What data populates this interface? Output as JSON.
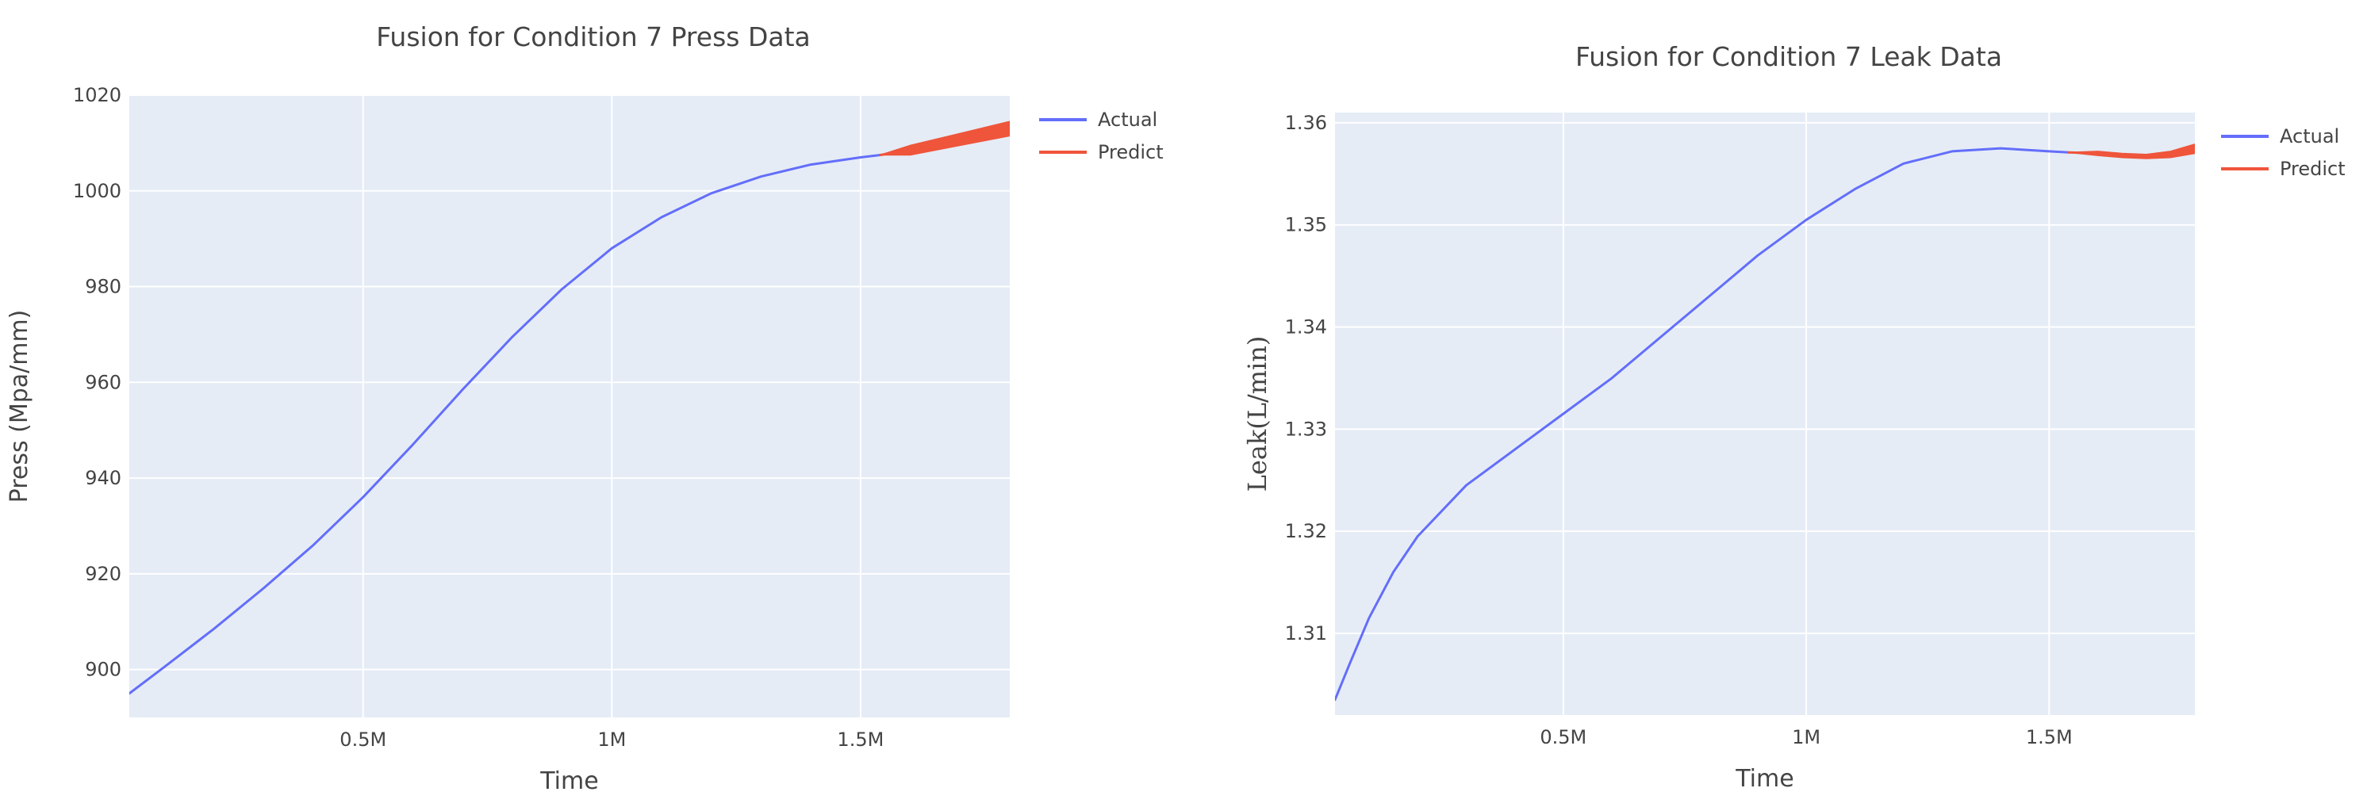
{
  "chart_data": [
    {
      "type": "line",
      "title": "Fusion for Condition 7 Press Data",
      "xlabel": "Time",
      "ylabel": "Press (Mpa/mm)",
      "xlim": [
        30000,
        1800000
      ],
      "ylim": [
        890,
        1020
      ],
      "x_ticks": [
        {
          "value": 500000,
          "label": "0.5M"
        },
        {
          "value": 1000000,
          "label": "1M"
        },
        {
          "value": 1500000,
          "label": "1.5M"
        }
      ],
      "y_ticks": [
        {
          "value": 900,
          "label": "900"
        },
        {
          "value": 920,
          "label": "920"
        },
        {
          "value": 940,
          "label": "940"
        },
        {
          "value": 960,
          "label": "960"
        },
        {
          "value": 980,
          "label": "980"
        },
        {
          "value": 1000,
          "label": "1000"
        },
        {
          "value": 1020,
          "label": "1020"
        }
      ],
      "grid": true,
      "legend": "top-right",
      "background": "#E5ECF6",
      "series": [
        {
          "name": "Actual",
          "color": "#636EFA",
          "x": [
            30000,
            100000,
            200000,
            300000,
            400000,
            500000,
            600000,
            700000,
            800000,
            900000,
            1000000,
            1100000,
            1200000,
            1300000,
            1400000,
            1500000,
            1540000
          ],
          "y": [
            895,
            900.5,
            908.5,
            917,
            926,
            936,
            947,
            958.5,
            969.5,
            979.5,
            988,
            994.5,
            999.5,
            1003,
            1005.5,
            1007,
            1007.5
          ]
        },
        {
          "name": "Predict",
          "color": "#EF553B",
          "x": [
            1540000,
            1600000,
            1700000,
            1800000
          ],
          "y": [
            1007.5,
            1008.5,
            1011,
            1013.5
          ],
          "y_lower": [
            1007.5,
            1007.5,
            1009.5,
            1011.5
          ],
          "y_upper": [
            1007.5,
            1009.5,
            1012,
            1014.5
          ]
        }
      ]
    },
    {
      "type": "line",
      "title": "Fusion for Condition 7 Leak Data",
      "xlabel": "Time",
      "ylabel": "Leak(L/min)",
      "xlim": [
        30000,
        1800000
      ],
      "ylim": [
        1.302,
        1.361
      ],
      "x_ticks": [
        {
          "value": 500000,
          "label": "0.5M"
        },
        {
          "value": 1000000,
          "label": "1M"
        },
        {
          "value": 1500000,
          "label": "1.5M"
        }
      ],
      "y_ticks": [
        {
          "value": 1.31,
          "label": "1.31"
        },
        {
          "value": 1.32,
          "label": "1.32"
        },
        {
          "value": 1.33,
          "label": "1.33"
        },
        {
          "value": 1.34,
          "label": "1.34"
        },
        {
          "value": 1.35,
          "label": "1.35"
        },
        {
          "value": 1.36,
          "label": "1.36"
        }
      ],
      "grid": true,
      "legend": "top-right",
      "background": "#E5ECF6",
      "series": [
        {
          "name": "Actual",
          "color": "#636EFA",
          "x": [
            30000,
            60000,
            100000,
            150000,
            200000,
            300000,
            400000,
            500000,
            600000,
            700000,
            800000,
            900000,
            1000000,
            1100000,
            1200000,
            1300000,
            1400000,
            1500000,
            1540000
          ],
          "y": [
            1.3035,
            1.307,
            1.3115,
            1.316,
            1.3195,
            1.3245,
            1.328,
            1.3315,
            1.335,
            1.339,
            1.343,
            1.347,
            1.3505,
            1.3535,
            1.356,
            1.3572,
            1.3575,
            1.3572,
            1.3571
          ]
        },
        {
          "name": "Predict",
          "color": "#EF553B",
          "x": [
            1540000,
            1600000,
            1650000,
            1700000,
            1750000,
            1800000
          ],
          "y": [
            1.3571,
            1.357,
            1.3568,
            1.3567,
            1.3569,
            1.3574
          ],
          "y_lower": [
            1.3571,
            1.3568,
            1.3566,
            1.3565,
            1.3566,
            1.357
          ],
          "y_upper": [
            1.3571,
            1.3572,
            1.357,
            1.3569,
            1.3572,
            1.3579
          ]
        }
      ]
    }
  ]
}
